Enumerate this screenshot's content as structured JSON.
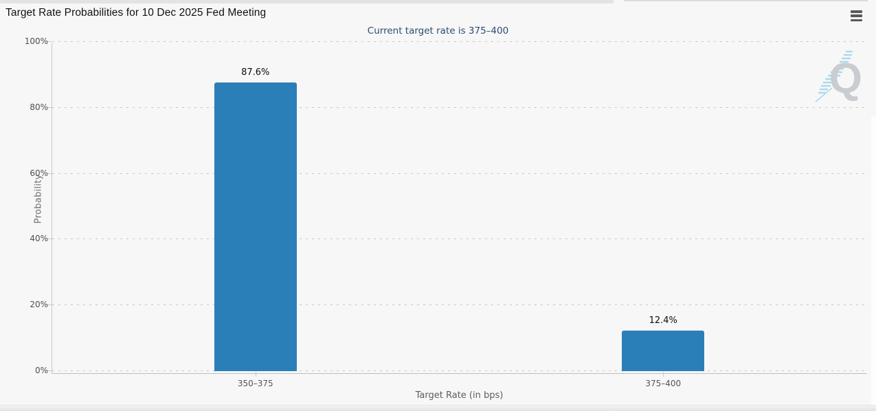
{
  "header": {
    "menu_icon": "hamburger-icon"
  },
  "watermark": {
    "letter": "Q"
  },
  "chart_data": {
    "type": "bar",
    "title": "Target Rate Probabilities for 10 Dec 2025 Fed Meeting",
    "subtitle": "Current target rate is 375–400",
    "categories": [
      "350–375",
      "375–400"
    ],
    "values": [
      87.6,
      12.4
    ],
    "value_labels": [
      "87.6%",
      "12.4%"
    ],
    "xlabel": "Target Rate (in bps)",
    "ylabel": "Probability",
    "ylim": [
      0,
      100
    ],
    "ytick_labels": [
      "0%",
      "20%",
      "40%",
      "60%",
      "80%",
      "100%"
    ],
    "grid": "horizontal-dashed",
    "legend": "none",
    "bar_color": "#2b7fb8",
    "colors": {
      "background": "#f7f7f7",
      "subtitle_text": "#2b4c6f",
      "grid_line": "#c6c6c6",
      "axis_text": "#555555",
      "watermark_gray": "#c9cdd1",
      "watermark_blue": "#a8daee"
    }
  }
}
